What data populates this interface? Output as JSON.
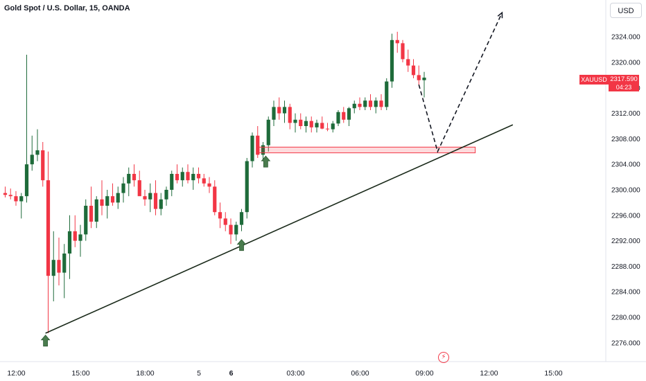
{
  "header": {
    "title": "Gold Spot / U.S. Dollar, 15, OANDA"
  },
  "currency_button": {
    "label": "USD"
  },
  "price_tag": {
    "symbol": "XAUUSD",
    "price": "2317.590",
    "countdown": "04:23"
  },
  "colors": {
    "up": "#1e6b3a",
    "down": "#f23645",
    "trendline": "#1a2a1a",
    "zone": "#f23645",
    "arrow": "#4a7c4e"
  },
  "chart_data": {
    "type": "candlestick",
    "title": "Gold Spot / U.S. Dollar, 15, OANDA",
    "ylim": [
      2273.0,
      2329.5
    ],
    "y_ticks": [
      "2324.000",
      "2320.000",
      "2316.000",
      "2312.000",
      "2308.000",
      "2304.000",
      "2300.000",
      "2296.000",
      "2292.000",
      "2288.000",
      "2284.000",
      "2280.000",
      "2276.000"
    ],
    "x_ticks": [
      {
        "label": "12:00",
        "bar": 0
      },
      {
        "label": "15:00",
        "bar": 12
      },
      {
        "label": "18:00",
        "bar": 24
      },
      {
        "label": "5",
        "bar": 34
      },
      {
        "label": "6",
        "bar": 40,
        "bold": true
      },
      {
        "label": "03:00",
        "bar": 52
      },
      {
        "label": "06:00",
        "bar": 64
      },
      {
        "label": "09:00",
        "bar": 76
      },
      {
        "label": "12:00",
        "bar": 88
      },
      {
        "label": "15:00",
        "bar": 100
      }
    ],
    "candles": [
      [
        2299.5,
        2300.5,
        2298.8,
        2299.2
      ],
      [
        2299.2,
        2300.2,
        2298.5,
        2299.0
      ],
      [
        2299.0,
        2299.8,
        2297.5,
        2298.2
      ],
      [
        2298.2,
        2299.5,
        2295.5,
        2299.0
      ],
      [
        2299.0,
        2321.2,
        2298.0,
        2304.0
      ],
      [
        2304.0,
        2308.5,
        2303.0,
        2305.5
      ],
      [
        2305.5,
        2309.5,
        2304.5,
        2306.2
      ],
      [
        2306.2,
        2307.5,
        2300.5,
        2301.5
      ],
      [
        2301.5,
        2306.0,
        2277.5,
        2286.5
      ],
      [
        2286.5,
        2293.5,
        2282.5,
        2289.0
      ],
      [
        2289.0,
        2292.5,
        2285.0,
        2287.0
      ],
      [
        2287.0,
        2291.5,
        2283.0,
        2290.0
      ],
      [
        2290.0,
        2296.0,
        2286.0,
        2293.5
      ],
      [
        2293.5,
        2296.0,
        2291.0,
        2292.0
      ],
      [
        2292.0,
        2294.5,
        2289.5,
        2293.0
      ],
      [
        2293.0,
        2298.5,
        2292.0,
        2297.5
      ],
      [
        2297.5,
        2300.5,
        2294.0,
        2295.0
      ],
      [
        2295.0,
        2299.0,
        2294.0,
        2298.5
      ],
      [
        2298.5,
        2301.5,
        2296.0,
        2297.5
      ],
      [
        2297.5,
        2300.0,
        2295.5,
        2299.0
      ],
      [
        2299.0,
        2301.0,
        2297.5,
        2298.0
      ],
      [
        2298.0,
        2300.5,
        2297.0,
        2299.5
      ],
      [
        2299.5,
        2302.0,
        2298.0,
        2301.0
      ],
      [
        2301.0,
        2303.5,
        2299.0,
        2302.5
      ],
      [
        2302.5,
        2304.0,
        2300.5,
        2301.5
      ],
      [
        2301.5,
        2303.0,
        2299.5,
        2299.0
      ],
      [
        2299.0,
        2300.0,
        2297.5,
        2298.5
      ],
      [
        2298.5,
        2301.0,
        2296.5,
        2299.5
      ],
      [
        2299.5,
        2301.5,
        2296.0,
        2297.0
      ],
      [
        2297.0,
        2299.5,
        2296.0,
        2298.5
      ],
      [
        2298.5,
        2300.5,
        2297.5,
        2300.0
      ],
      [
        2300.0,
        2303.0,
        2299.0,
        2302.5
      ],
      [
        2302.5,
        2304.0,
        2301.0,
        2301.5
      ],
      [
        2301.5,
        2303.5,
        2300.5,
        2302.8
      ],
      [
        2302.8,
        2304.0,
        2301.0,
        2301.5
      ],
      [
        2301.5,
        2303.5,
        2300.0,
        2302.5
      ],
      [
        2302.5,
        2303.5,
        2301.0,
        2301.8
      ],
      [
        2301.8,
        2302.5,
        2300.5,
        2301.0
      ],
      [
        2301.0,
        2302.0,
        2299.5,
        2300.5
      ],
      [
        2300.5,
        2301.5,
        2296.0,
        2296.5
      ],
      [
        2296.5,
        2298.0,
        2294.0,
        2295.5
      ],
      [
        2295.5,
        2296.5,
        2293.5,
        2294.5
      ],
      [
        2294.5,
        2295.5,
        2291.5,
        2293.0
      ],
      [
        2293.0,
        2295.0,
        2292.0,
        2294.5
      ],
      [
        2294.5,
        2297.0,
        2293.5,
        2296.5
      ],
      [
        2296.5,
        2305.0,
        2295.5,
        2304.5
      ],
      [
        2304.5,
        2309.0,
        2303.5,
        2308.5
      ],
      [
        2308.5,
        2310.0,
        2305.0,
        2305.5
      ],
      [
        2305.5,
        2307.5,
        2304.5,
        2307.0
      ],
      [
        2307.0,
        2311.5,
        2306.0,
        2311.0
      ],
      [
        2311.0,
        2314.0,
        2310.0,
        2313.0
      ],
      [
        2313.0,
        2314.5,
        2311.0,
        2312.0
      ],
      [
        2312.0,
        2314.0,
        2310.5,
        2313.0
      ],
      [
        2313.0,
        2313.5,
        2309.5,
        2310.5
      ],
      [
        2310.5,
        2312.0,
        2309.0,
        2311.0
      ],
      [
        2311.0,
        2312.0,
        2309.5,
        2310.0
      ],
      [
        2310.0,
        2311.5,
        2309.0,
        2310.8
      ],
      [
        2310.8,
        2311.5,
        2309.0,
        2309.8
      ],
      [
        2309.8,
        2311.0,
        2309.0,
        2310.5
      ],
      [
        2310.5,
        2311.5,
        2309.5,
        2309.6
      ],
      [
        2309.6,
        2310.5,
        2309.2,
        2309.5
      ],
      [
        2309.5,
        2310.8,
        2309.0,
        2310.4
      ],
      [
        2310.4,
        2312.5,
        2310.0,
        2312.2
      ],
      [
        2312.2,
        2313.0,
        2310.5,
        2311.0
      ],
      [
        2311.0,
        2313.0,
        2310.0,
        2312.8
      ],
      [
        2312.8,
        2314.0,
        2312.0,
        2313.5
      ],
      [
        2313.5,
        2314.5,
        2312.5,
        2313.0
      ],
      [
        2313.0,
        2314.5,
        2312.5,
        2314.0
      ],
      [
        2314.0,
        2315.0,
        2312.5,
        2313.0
      ],
      [
        2313.0,
        2314.5,
        2312.0,
        2314.0
      ],
      [
        2314.0,
        2315.0,
        2312.5,
        2313.0
      ],
      [
        2313.0,
        2317.5,
        2312.5,
        2317.0
      ],
      [
        2317.0,
        2324.5,
        2316.0,
        2323.5
      ],
      [
        2323.5,
        2324.8,
        2321.5,
        2323.0
      ],
      [
        2323.0,
        2323.5,
        2320.0,
        2320.5
      ],
      [
        2320.5,
        2322.0,
        2318.5,
        2319.5
      ],
      [
        2319.5,
        2320.5,
        2317.5,
        2318.0
      ],
      [
        2318.0,
        2319.5,
        2316.5,
        2317.2
      ],
      [
        2317.2,
        2318.5,
        2314.5,
        2317.6
      ]
    ],
    "annotations": {
      "trendline": {
        "from": {
          "bar": 7.5,
          "price": 2277.5
        },
        "to": {
          "bar": 94.5,
          "price": 2310.2
        }
      },
      "zone": {
        "from_bar": 47,
        "to_bar": 87.5,
        "top": 2306.7,
        "bottom": 2305.8
      },
      "projection": [
        {
          "bar": 77,
          "price": 2316.5
        },
        {
          "bar": 80.5,
          "price": 2306.0
        },
        {
          "bar": 92.5,
          "price": 2327.8
        }
      ],
      "arrows": [
        {
          "bar": 7.5,
          "price": 2277.2
        },
        {
          "bar": 44,
          "price": 2292.2
        },
        {
          "bar": 48.5,
          "price": 2305.3
        }
      ]
    }
  }
}
